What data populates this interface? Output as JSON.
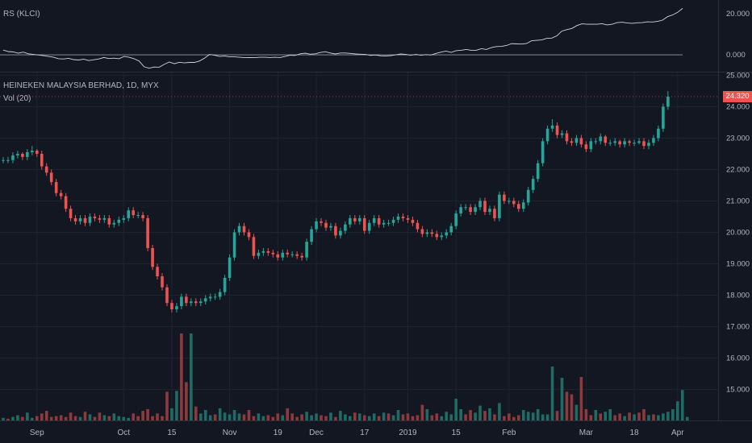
{
  "indicator": {
    "title": "RS (KLCI)"
  },
  "main": {
    "title": "HEINEKEN MALAYSIA BERHAD, 1D, MYX",
    "volume_label": "Vol (20)",
    "last_price": "24.320"
  },
  "colors": {
    "background": "#131722",
    "up": "#26a69a",
    "down": "#ef5350",
    "volume_up": "#1f6b65",
    "volume_down": "#8e3a3c",
    "grid": "#1f2330",
    "line": "#d1d4dc",
    "text": "#b2b5be"
  },
  "chart_data": [
    {
      "type": "line",
      "title": "RS (KLCI)",
      "yticks": [
        "20.000",
        "0.000"
      ],
      "ylim": [
        -7,
        25
      ],
      "reference_line": 0,
      "values": [
        2.3,
        1.6,
        1.4,
        0.8,
        1.3,
        0.5,
        0.2,
        -0.1,
        -0.4,
        -0.8,
        -1.2,
        -1.9,
        -2.0,
        -1.7,
        -2.3,
        -2.5,
        -2.1,
        -2.8,
        -2.4,
        -2.0,
        -1.3,
        -1.8,
        -1.6,
        -1.9,
        -0.8,
        -1.2,
        -1.9,
        -3.0,
        -5.8,
        -6.5,
        -5.9,
        -6.0,
        -4.6,
        -3.5,
        -4.3,
        -3.6,
        -3.9,
        -3.7,
        -3.7,
        -3.0,
        -1.6,
        0.2,
        -0.2,
        -0.8,
        -0.6,
        -1.0,
        -1.0,
        -1.2,
        -1.4,
        -1.3,
        -1.4,
        -1.2,
        -1.2,
        -1.3,
        -1.2,
        -1.3,
        -0.8,
        -0.2,
        -0.3,
        0.5,
        0.8,
        0.3,
        0.5,
        1.1,
        1.5,
        0.9,
        0.4,
        0.9,
        0.9,
        0.7,
        0.4,
        0.3,
        0.2,
        -0.3,
        -0.1,
        -0.5,
        -0.6,
        -0.4,
        0.0,
        0.4,
        0.2,
        -0.2,
        0.2,
        -0.2,
        0.1,
        -0.1,
        0.7,
        1.3,
        1.8,
        1.2,
        2.0,
        2.2,
        2.6,
        2.2,
        2.2,
        3.0,
        2.6,
        3.5,
        4.0,
        4.1,
        4.5,
        5.4,
        5.3,
        5.2,
        5.5,
        6.8,
        7.0,
        7.2,
        8.0,
        8.1,
        9.2,
        11.5,
        12.2,
        12.8,
        14.2,
        15.0,
        14.8,
        14.8,
        14.8,
        15.1,
        14.5,
        14.8,
        15.6,
        15.8,
        15.4,
        15.3,
        15.5,
        15.6,
        16.0,
        15.9,
        16.2,
        16.8,
        18.5,
        19.3,
        20.6,
        22.5
      ]
    },
    {
      "type": "candlestick",
      "title": "HEINEKEN MALAYSIA BERHAD, 1D, MYX",
      "yticks": [
        "25.000",
        "24.000",
        "23.000",
        "22.000",
        "21.000",
        "20.000",
        "19.000",
        "18.000",
        "17.000",
        "16.000",
        "15.000"
      ],
      "ylim": [
        14.05,
        25.05
      ],
      "last_price": 24.32,
      "x_labels": [
        "Sep",
        "Oct",
        "15",
        "Nov",
        "19",
        "Dec",
        "17",
        "2019",
        "15",
        "Feb",
        "Mar",
        "18",
        "Apr"
      ],
      "x_label_index": [
        7,
        25,
        35,
        47,
        57,
        65,
        75,
        84,
        94,
        105,
        121,
        131,
        140
      ],
      "close": [
        22.3,
        22.3,
        22.45,
        22.5,
        22.4,
        22.55,
        22.6,
        22.5,
        22.1,
        21.9,
        21.6,
        21.25,
        21.15,
        20.75,
        20.45,
        20.35,
        20.45,
        20.3,
        20.5,
        20.45,
        20.4,
        20.45,
        20.25,
        20.3,
        20.4,
        20.45,
        20.7,
        20.55,
        20.55,
        20.45,
        19.5,
        18.9,
        18.6,
        18.25,
        17.75,
        17.55,
        17.65,
        17.95,
        17.75,
        17.8,
        17.75,
        17.8,
        17.9,
        17.95,
        17.95,
        18.1,
        18.55,
        19.2,
        20.0,
        20.2,
        20.0,
        19.85,
        19.25,
        19.35,
        19.4,
        19.35,
        19.3,
        19.2,
        19.35,
        19.3,
        19.3,
        19.25,
        19.2,
        19.7,
        20.1,
        20.35,
        20.3,
        20.15,
        20.2,
        19.9,
        20.05,
        20.25,
        20.45,
        20.35,
        20.45,
        20.05,
        20.3,
        20.45,
        20.25,
        20.3,
        20.3,
        20.4,
        20.5,
        20.45,
        20.4,
        20.3,
        20.1,
        19.95,
        20.0,
        19.95,
        19.85,
        19.9,
        20.0,
        20.2,
        20.6,
        20.8,
        20.8,
        20.65,
        20.8,
        21.0,
        20.65,
        20.75,
        20.45,
        21.2,
        21.0,
        21.0,
        20.9,
        20.75,
        20.95,
        21.35,
        21.7,
        22.2,
        22.9,
        23.3,
        23.4,
        23.1,
        23.15,
        22.9,
        22.85,
        23.0,
        22.8,
        22.65,
        22.9,
        22.9,
        23.05,
        22.85,
        22.85,
        22.9,
        22.8,
        22.9,
        22.85,
        22.85,
        22.9,
        22.75,
        22.85,
        23.0,
        23.3,
        24.0,
        24.32
      ],
      "open": [
        22.3,
        22.3,
        22.3,
        22.45,
        22.5,
        22.4,
        22.55,
        22.6,
        22.5,
        22.1,
        21.9,
        21.6,
        21.25,
        21.15,
        20.75,
        20.45,
        20.35,
        20.45,
        20.3,
        20.5,
        20.45,
        20.4,
        20.45,
        20.25,
        20.3,
        20.4,
        20.45,
        20.7,
        20.55,
        20.55,
        20.45,
        19.5,
        18.9,
        18.6,
        18.25,
        17.75,
        17.55,
        17.65,
        17.95,
        17.75,
        17.8,
        17.75,
        17.8,
        17.9,
        17.95,
        17.95,
        18.1,
        18.55,
        19.2,
        20.0,
        20.2,
        20.0,
        19.85,
        19.25,
        19.35,
        19.4,
        19.35,
        19.3,
        19.2,
        19.35,
        19.3,
        19.3,
        19.25,
        19.2,
        19.7,
        20.1,
        20.35,
        20.3,
        20.15,
        20.2,
        19.9,
        20.05,
        20.25,
        20.45,
        20.35,
        20.45,
        20.05,
        20.3,
        20.45,
        20.25,
        20.3,
        20.3,
        20.4,
        20.5,
        20.45,
        20.4,
        20.3,
        20.1,
        19.95,
        20.0,
        19.95,
        19.85,
        19.9,
        20.0,
        20.2,
        20.6,
        20.8,
        20.8,
        20.65,
        20.8,
        21.0,
        20.65,
        20.75,
        20.45,
        21.2,
        21.0,
        21.0,
        20.9,
        20.75,
        20.95,
        21.35,
        21.7,
        22.2,
        22.9,
        23.3,
        23.4,
        23.1,
        23.15,
        22.9,
        22.85,
        23.0,
        22.8,
        22.65,
        22.9,
        22.9,
        23.05,
        22.85,
        22.85,
        22.9,
        22.8,
        22.9,
        22.85,
        22.85,
        22.9,
        22.75,
        22.85,
        23.0,
        23.3,
        24.0
      ],
      "high": [
        22.4,
        22.4,
        22.55,
        22.6,
        22.55,
        22.65,
        22.75,
        22.65,
        22.6,
        22.2,
        22.0,
        21.7,
        21.35,
        21.25,
        20.85,
        20.55,
        20.55,
        20.55,
        20.6,
        20.6,
        20.55,
        20.55,
        20.55,
        20.4,
        20.5,
        20.55,
        20.8,
        20.8,
        20.65,
        20.65,
        20.55,
        19.6,
        19.0,
        18.7,
        18.35,
        17.85,
        17.75,
        18.05,
        18.05,
        17.9,
        17.9,
        17.9,
        18.0,
        18.05,
        18.05,
        18.2,
        18.65,
        19.3,
        20.1,
        20.3,
        20.3,
        20.1,
        19.95,
        19.45,
        19.5,
        19.5,
        19.45,
        19.4,
        19.45,
        19.45,
        19.4,
        19.4,
        19.35,
        19.8,
        20.2,
        20.45,
        20.45,
        20.4,
        20.3,
        20.3,
        20.15,
        20.35,
        20.55,
        20.55,
        20.55,
        20.55,
        20.4,
        20.55,
        20.55,
        20.4,
        20.4,
        20.5,
        20.6,
        20.6,
        20.55,
        20.5,
        20.4,
        20.2,
        20.1,
        20.1,
        20.05,
        20.0,
        20.1,
        20.3,
        20.7,
        20.9,
        20.9,
        20.9,
        20.9,
        21.1,
        21.1,
        20.85,
        20.85,
        21.3,
        21.3,
        21.1,
        21.1,
        21.0,
        21.05,
        21.45,
        21.8,
        22.3,
        23.0,
        23.4,
        23.6,
        23.5,
        23.25,
        23.25,
        23.0,
        23.1,
        23.1,
        22.9,
        23.0,
        23.0,
        23.15,
        23.1,
        22.95,
        23.0,
        22.95,
        23.0,
        22.95,
        22.95,
        23.0,
        23.0,
        22.95,
        23.1,
        23.4,
        24.1,
        24.5
      ],
      "low": [
        22.2,
        22.2,
        22.2,
        22.35,
        22.3,
        22.3,
        22.45,
        22.4,
        22.0,
        21.8,
        21.5,
        21.15,
        21.05,
        20.65,
        20.35,
        20.25,
        20.25,
        20.2,
        20.2,
        20.35,
        20.3,
        20.3,
        20.15,
        20.15,
        20.2,
        20.3,
        20.35,
        20.45,
        20.45,
        20.35,
        19.4,
        18.8,
        18.5,
        18.15,
        17.65,
        17.45,
        17.45,
        17.55,
        17.65,
        17.65,
        17.65,
        17.65,
        17.7,
        17.8,
        17.85,
        17.85,
        18.0,
        18.45,
        19.1,
        19.9,
        19.9,
        19.75,
        19.15,
        19.15,
        19.25,
        19.25,
        19.2,
        19.1,
        19.1,
        19.2,
        19.2,
        19.15,
        19.1,
        19.1,
        19.6,
        20.0,
        20.2,
        20.05,
        20.05,
        19.8,
        19.8,
        19.95,
        20.15,
        20.25,
        20.25,
        19.95,
        19.95,
        20.2,
        20.15,
        20.15,
        20.2,
        20.2,
        20.3,
        20.35,
        20.3,
        20.2,
        20.0,
        19.85,
        19.85,
        19.85,
        19.75,
        19.75,
        19.8,
        19.9,
        20.1,
        20.5,
        20.7,
        20.55,
        20.55,
        20.7,
        20.55,
        20.55,
        20.35,
        20.35,
        20.9,
        20.9,
        20.8,
        20.65,
        20.65,
        20.85,
        21.25,
        21.6,
        22.1,
        22.8,
        23.2,
        23.0,
        23.0,
        22.8,
        22.75,
        22.75,
        22.7,
        22.55,
        22.55,
        22.8,
        22.8,
        22.75,
        22.75,
        22.75,
        22.7,
        22.7,
        22.75,
        22.75,
        22.8,
        22.65,
        22.65,
        22.75,
        22.9,
        23.2,
        23.9
      ]
    },
    {
      "type": "bar",
      "title": "Vol (20)",
      "ylim": [
        0,
        100
      ],
      "values": [
        3,
        2,
        4,
        6,
        4,
        9,
        3,
        5,
        8,
        11,
        4,
        5,
        6,
        4,
        9,
        5,
        4,
        10,
        7,
        4,
        9,
        6,
        5,
        8,
        5,
        4,
        3,
        8,
        5,
        11,
        13,
        5,
        8,
        5,
        33,
        14,
        34,
        100,
        44,
        100,
        16,
        8,
        12,
        6,
        7,
        14,
        9,
        7,
        12,
        8,
        7,
        12,
        5,
        8,
        5,
        6,
        4,
        8,
        6,
        14,
        8,
        4,
        7,
        10,
        6,
        8,
        6,
        5,
        9,
        4,
        11,
        7,
        5,
        9,
        8,
        6,
        5,
        8,
        5,
        9,
        8,
        6,
        12,
        7,
        8,
        5,
        6,
        18,
        13,
        6,
        8,
        5,
        10,
        7,
        25,
        13,
        7,
        12,
        9,
        17,
        11,
        14,
        7,
        20,
        5,
        8,
        4,
        6,
        12,
        10,
        9,
        13,
        7,
        7,
        62,
        11,
        49,
        33,
        30,
        18,
        50,
        13,
        6,
        12,
        8,
        10,
        13,
        6,
        8,
        5,
        9,
        7,
        9,
        13,
        6,
        7,
        6,
        8,
        10,
        13,
        22,
        35,
        4
      ],
      "up": [
        1,
        0,
        1,
        1,
        0,
        1,
        1,
        0,
        0,
        0,
        0,
        0,
        0,
        0,
        0,
        0,
        1,
        0,
        1,
        0,
        0,
        1,
        0,
        1,
        1,
        1,
        1,
        0,
        0,
        0,
        0,
        0,
        0,
        0,
        0,
        1,
        1,
        0,
        0,
        1,
        0,
        1,
        1,
        1,
        0,
        1,
        1,
        1,
        1,
        1,
        0,
        0,
        0,
        1,
        1,
        0,
        0,
        0,
        1,
        0,
        0,
        0,
        0,
        1,
        1,
        1,
        0,
        0,
        1,
        0,
        1,
        1,
        1,
        0,
        1,
        0,
        1,
        1,
        0,
        1,
        0,
        1,
        1,
        0,
        0,
        0,
        0,
        0,
        1,
        0,
        0,
        1,
        1,
        1,
        1,
        1,
        0,
        0,
        1,
        1,
        0,
        1,
        0,
        1,
        0,
        0,
        0,
        0,
        1,
        1,
        1,
        1,
        1,
        1,
        1,
        0,
        1,
        0,
        0,
        1,
        0,
        0,
        0,
        1,
        0,
        1,
        1,
        0,
        0,
        1,
        0,
        1,
        0,
        0,
        1,
        0,
        1,
        1,
        1,
        1,
        1,
        1,
        1
      ]
    }
  ]
}
